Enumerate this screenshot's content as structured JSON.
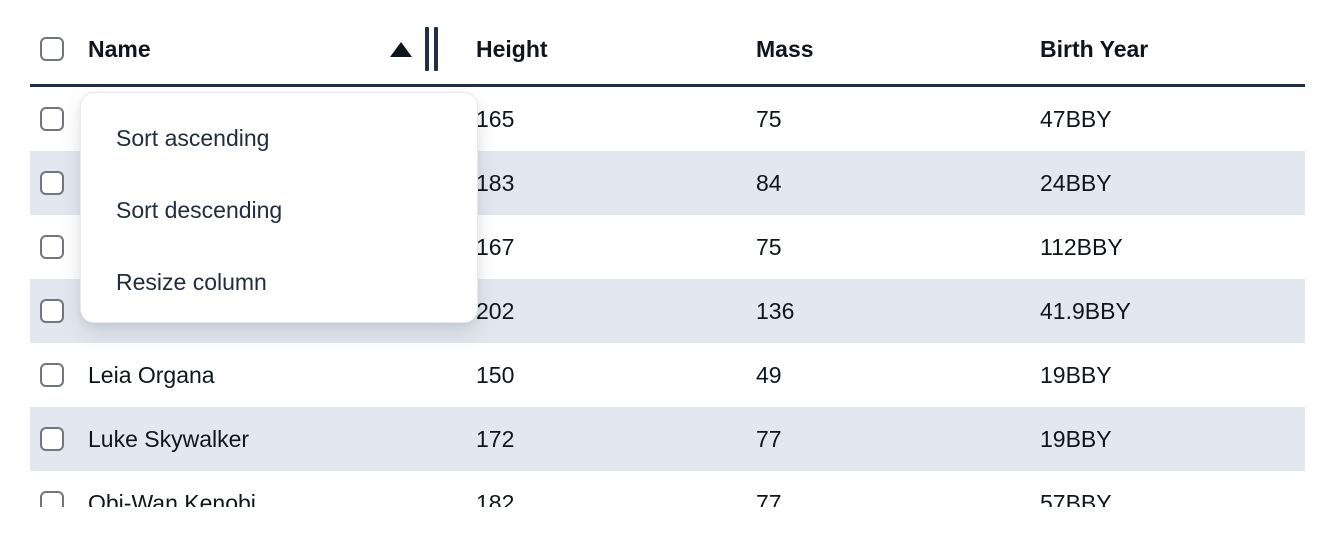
{
  "table": {
    "columns": [
      {
        "label": "Name",
        "sort_indicator": "ascending",
        "has_resize_handle": true
      },
      {
        "label": "Height"
      },
      {
        "label": "Mass"
      },
      {
        "label": "Birth Year"
      }
    ],
    "rows": [
      {
        "name": "",
        "height": "165",
        "mass": "75",
        "birth_year": "47BBY",
        "checked": false
      },
      {
        "name": "",
        "height": "183",
        "mass": "84",
        "birth_year": "24BBY",
        "checked": false
      },
      {
        "name": "",
        "height": "167",
        "mass": "75",
        "birth_year": "112BBY",
        "checked": false
      },
      {
        "name": "",
        "height": "202",
        "mass": "136",
        "birth_year": "41.9BBY",
        "checked": false
      },
      {
        "name": "Leia Organa",
        "height": "150",
        "mass": "49",
        "birth_year": "19BBY",
        "checked": false
      },
      {
        "name": "Luke Skywalker",
        "height": "172",
        "mass": "77",
        "birth_year": "19BBY",
        "checked": false
      },
      {
        "name": "Obi-Wan Kenobi",
        "height": "182",
        "mass": "77",
        "birth_year": "57BBY",
        "checked": false
      }
    ],
    "header_checkbox_checked": false
  },
  "context_menu": {
    "items": [
      {
        "label": "Sort ascending"
      },
      {
        "label": "Sort descending"
      },
      {
        "label": "Resize column"
      }
    ]
  },
  "icons": {
    "sort_ascending_icon": "filled upward triangle",
    "column_resize_icon": "double vertical bars",
    "checkbox_icon": "empty rounded square"
  },
  "colors": {
    "row_stripe": "#e3e8f0",
    "header_border": "#243041",
    "text": "#10151d",
    "menu_text": "#222c3d",
    "checkbox_border": "#71767e",
    "menu_border": "#e7e7ec",
    "background": "#ffffff"
  }
}
